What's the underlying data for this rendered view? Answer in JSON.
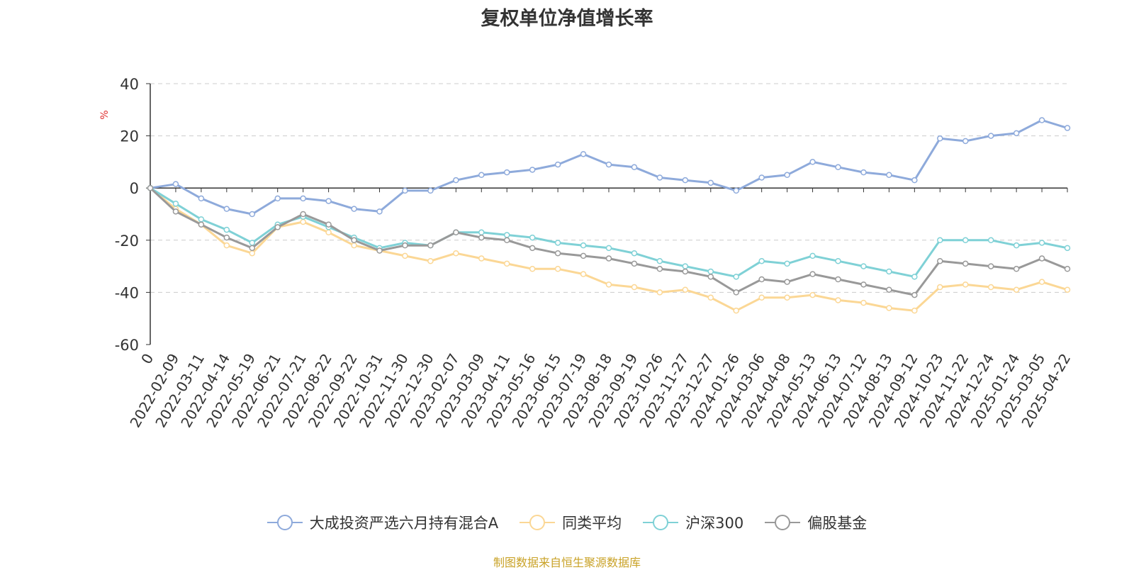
{
  "chart_data": {
    "type": "line",
    "title": "复权单位净值增长率",
    "ylabel": "%",
    "ylim": [
      -60,
      40
    ],
    "yticks": [
      40,
      20,
      0,
      -20,
      -40,
      -60
    ],
    "grid": true,
    "legend_position": "bottom",
    "categories": [
      "0",
      "2022-02-09",
      "2022-03-11",
      "2022-04-14",
      "2022-05-19",
      "2022-06-21",
      "2022-07-21",
      "2022-08-22",
      "2022-09-22",
      "2022-10-31",
      "2022-11-30",
      "2022-12-30",
      "2023-02-07",
      "2023-03-09",
      "2023-04-11",
      "2023-05-16",
      "2023-06-15",
      "2023-07-19",
      "2023-08-18",
      "2023-09-19",
      "2023-10-26",
      "2023-11-27",
      "2023-12-27",
      "2024-01-26",
      "2024-03-06",
      "2024-04-08",
      "2024-05-13",
      "2024-06-13",
      "2024-07-12",
      "2024-08-13",
      "2024-09-12",
      "2024-10-23",
      "2024-11-22",
      "2024-12-24",
      "2025-01-24",
      "2025-03-05",
      "2025-04-22"
    ],
    "series": [
      {
        "name": "大成投资严选六月持有混合A",
        "color": "#8eaadb",
        "values": [
          0,
          1.5,
          -4,
          -8,
          -10,
          -4,
          -4,
          -5,
          -8,
          -9,
          -1,
          -1,
          3,
          5,
          6,
          7,
          9,
          13,
          9,
          8,
          4,
          3,
          2,
          -1,
          4,
          5,
          10,
          8,
          6,
          5,
          3,
          19,
          18,
          20,
          21,
          26,
          23
        ]
      },
      {
        "name": "同类平均",
        "color": "#fbd795",
        "values": [
          0,
          -8,
          -14,
          -22,
          -25,
          -15,
          -13,
          -17,
          -22,
          -24,
          -26,
          -28,
          -25,
          -27,
          -29,
          -31,
          -31,
          -33,
          -37,
          -38,
          -40,
          -39,
          -42,
          -47,
          -42,
          -42,
          -41,
          -43,
          -44,
          -46,
          -47,
          -38,
          -37,
          -38,
          -39,
          -36,
          -39
        ]
      },
      {
        "name": "沪深300",
        "color": "#7fd1d6",
        "values": [
          0,
          -6,
          -12,
          -16,
          -21,
          -14,
          -11,
          -15,
          -19,
          -23,
          -21,
          -22,
          -17,
          -17,
          -18,
          -19,
          -21,
          -22,
          -23,
          -25,
          -28,
          -30,
          -32,
          -34,
          -28,
          -29,
          -26,
          -28,
          -30,
          -32,
          -34,
          -20,
          -20,
          -20,
          -22,
          -21,
          -23
        ]
      },
      {
        "name": "偏股基金",
        "color": "#999999",
        "values": [
          0,
          -9,
          -14,
          -19,
          -23,
          -15,
          -10,
          -14,
          -20,
          -24,
          -22,
          -22,
          -17,
          -19,
          -20,
          -23,
          -25,
          -26,
          -27,
          -29,
          -31,
          -32,
          -34,
          -40,
          -35,
          -36,
          -33,
          -35,
          -37,
          -39,
          -41,
          -28,
          -29,
          -30,
          -31,
          -27,
          -31
        ]
      }
    ]
  },
  "source": "制图数据来自恒生聚源数据库"
}
